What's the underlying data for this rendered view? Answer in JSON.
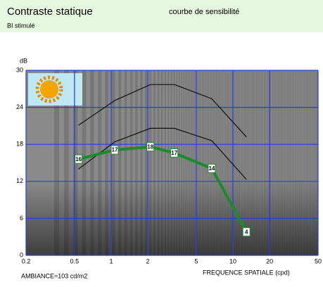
{
  "header": {
    "title": "Contraste statique",
    "subtitle": "courbe de sensibilité",
    "stimulus": "BI stimulé"
  },
  "chart_data": {
    "type": "line",
    "y_unit": "dB",
    "x_label": "FREQUENCE SPATIALE (cpd)",
    "note": "AMBIANCE=103 cd/m2",
    "log_x": true,
    "xlim": [
      0.2,
      50
    ],
    "xticks": [
      0.2,
      0.5,
      1,
      2,
      5,
      10,
      20,
      50
    ],
    "ylim": [
      0,
      30
    ],
    "yticks": [
      0,
      6,
      12,
      18,
      24,
      30
    ],
    "grid": true,
    "grid_color": "#2a3adf",
    "x": [
      0.54,
      1.07,
      2.1,
      3.3,
      6.7,
      12.9
    ],
    "series": [
      {
        "color": "#111111",
        "values": [
          21.1,
          25.1,
          27.7,
          27.7,
          25.4,
          19.2
        ]
      },
      {
        "color": "#111111",
        "values": [
          14.0,
          18.4,
          20.6,
          20.6,
          18.6,
          12.3
        ]
      },
      {
        "color": "#1e8a2e",
        "values": [
          15.6,
          17.1,
          17.6,
          16.6,
          14.1,
          3.8
        ],
        "value_labels": [
          "16",
          "17",
          "18",
          "17",
          "14",
          "4"
        ]
      }
    ]
  }
}
